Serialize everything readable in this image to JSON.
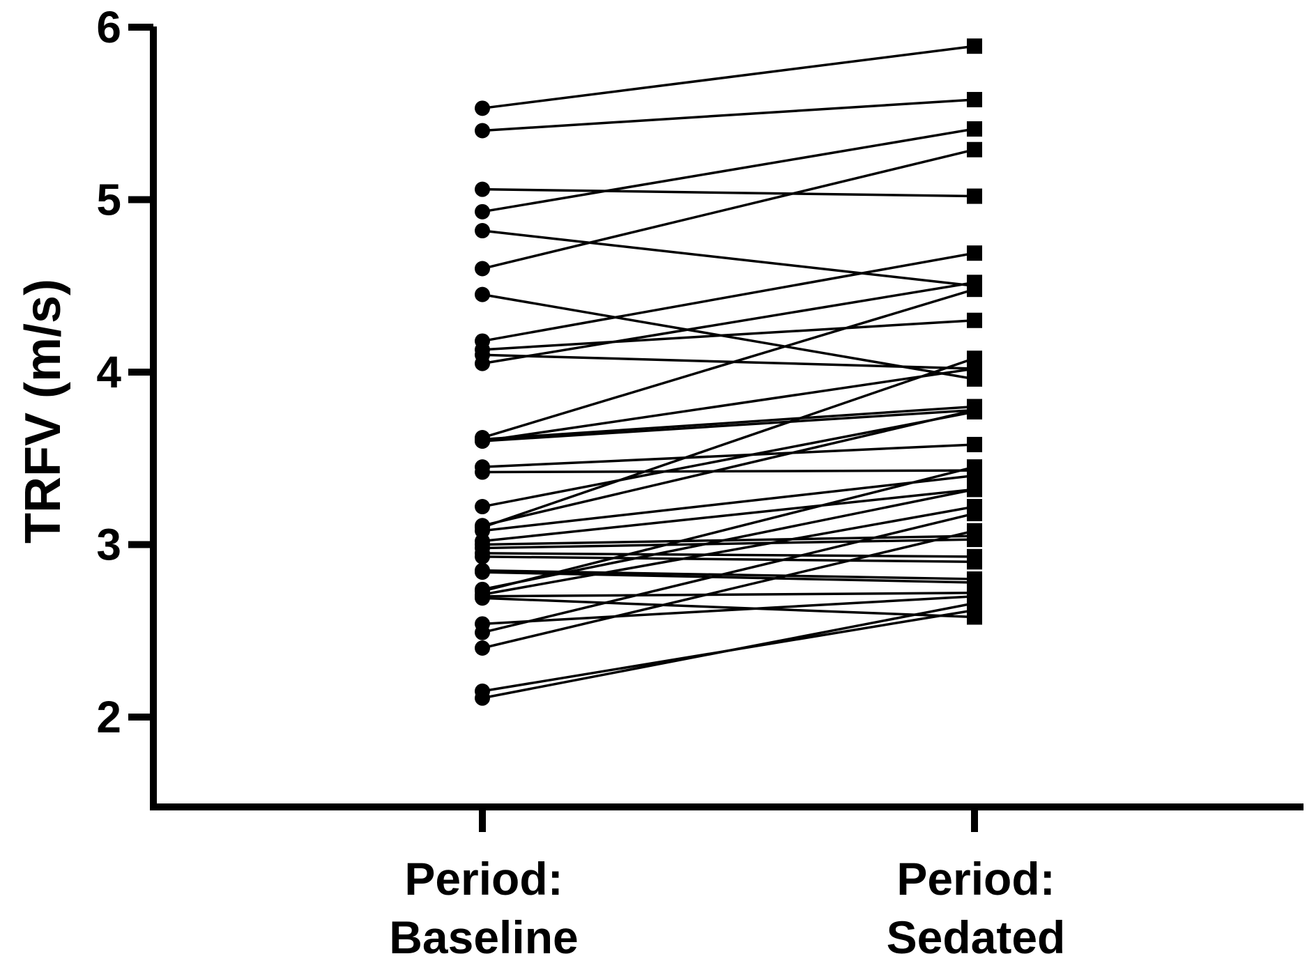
{
  "chart_data": {
    "type": "line",
    "ylabel": "TRFV (m/s)",
    "xlabel": "",
    "ylim": [
      1.5,
      6
    ],
    "yticks": [
      2,
      3,
      4,
      5,
      6
    ],
    "grid": false,
    "categories": [
      {
        "line1": "Period:",
        "line2": "Baseline"
      },
      {
        "line1": "Period:",
        "line2": "Sedated"
      }
    ],
    "pairs": [
      [
        5.53,
        5.89
      ],
      [
        5.4,
        5.58
      ],
      [
        4.93,
        5.41
      ],
      [
        4.6,
        5.29
      ],
      [
        5.06,
        5.02
      ],
      [
        4.82,
        4.5
      ],
      [
        4.45,
        3.96
      ],
      [
        4.18,
        4.69
      ],
      [
        4.05,
        4.52
      ],
      [
        4.13,
        4.3
      ],
      [
        4.1,
        4.02
      ],
      [
        3.62,
        4.48
      ],
      [
        3.6,
        4.02
      ],
      [
        3.61,
        3.8
      ],
      [
        3.6,
        3.78
      ],
      [
        3.45,
        3.58
      ],
      [
        3.42,
        3.43
      ],
      [
        3.22,
        3.77
      ],
      [
        3.11,
        3.78
      ],
      [
        3.1,
        4.08
      ],
      [
        3.08,
        3.4
      ],
      [
        3.02,
        3.32
      ],
      [
        3.0,
        3.05
      ],
      [
        2.98,
        3.03
      ],
      [
        2.95,
        2.93
      ],
      [
        2.93,
        2.9
      ],
      [
        2.85,
        2.8
      ],
      [
        2.84,
        2.78
      ],
      [
        2.74,
        3.32
      ],
      [
        2.73,
        3.45
      ],
      [
        2.71,
        3.22
      ],
      [
        2.7,
        2.72
      ],
      [
        2.69,
        2.58
      ],
      [
        2.54,
        2.7
      ],
      [
        2.49,
        3.18
      ],
      [
        2.4,
        3.08
      ],
      [
        2.15,
        2.62
      ],
      [
        2.11,
        2.66
      ]
    ]
  }
}
